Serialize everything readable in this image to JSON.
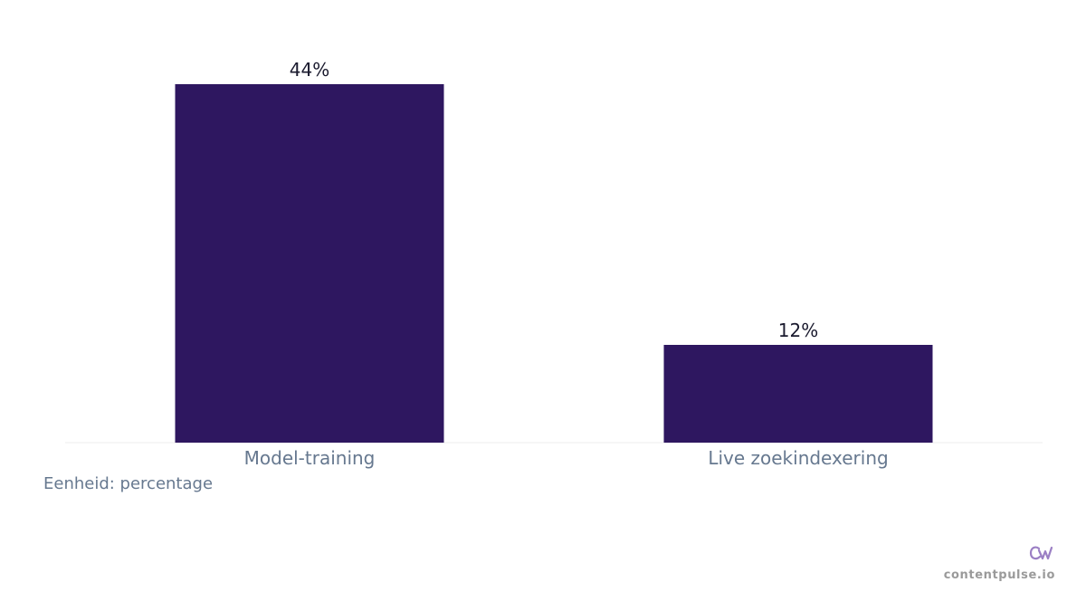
{
  "chart_data": {
    "type": "bar",
    "categories": [
      "Model-training",
      "Live zoekindexering"
    ],
    "values": [
      44,
      12
    ],
    "value_labels": [
      "44%",
      "12%"
    ],
    "ylim": [
      0,
      50
    ],
    "grid": false,
    "bar_color": "#2e1760"
  },
  "unit_note": "Eenheid: percentage",
  "brand": {
    "logo_text": "CW",
    "name": "contentpulse.io",
    "logo_color": "#9b7fc4"
  }
}
